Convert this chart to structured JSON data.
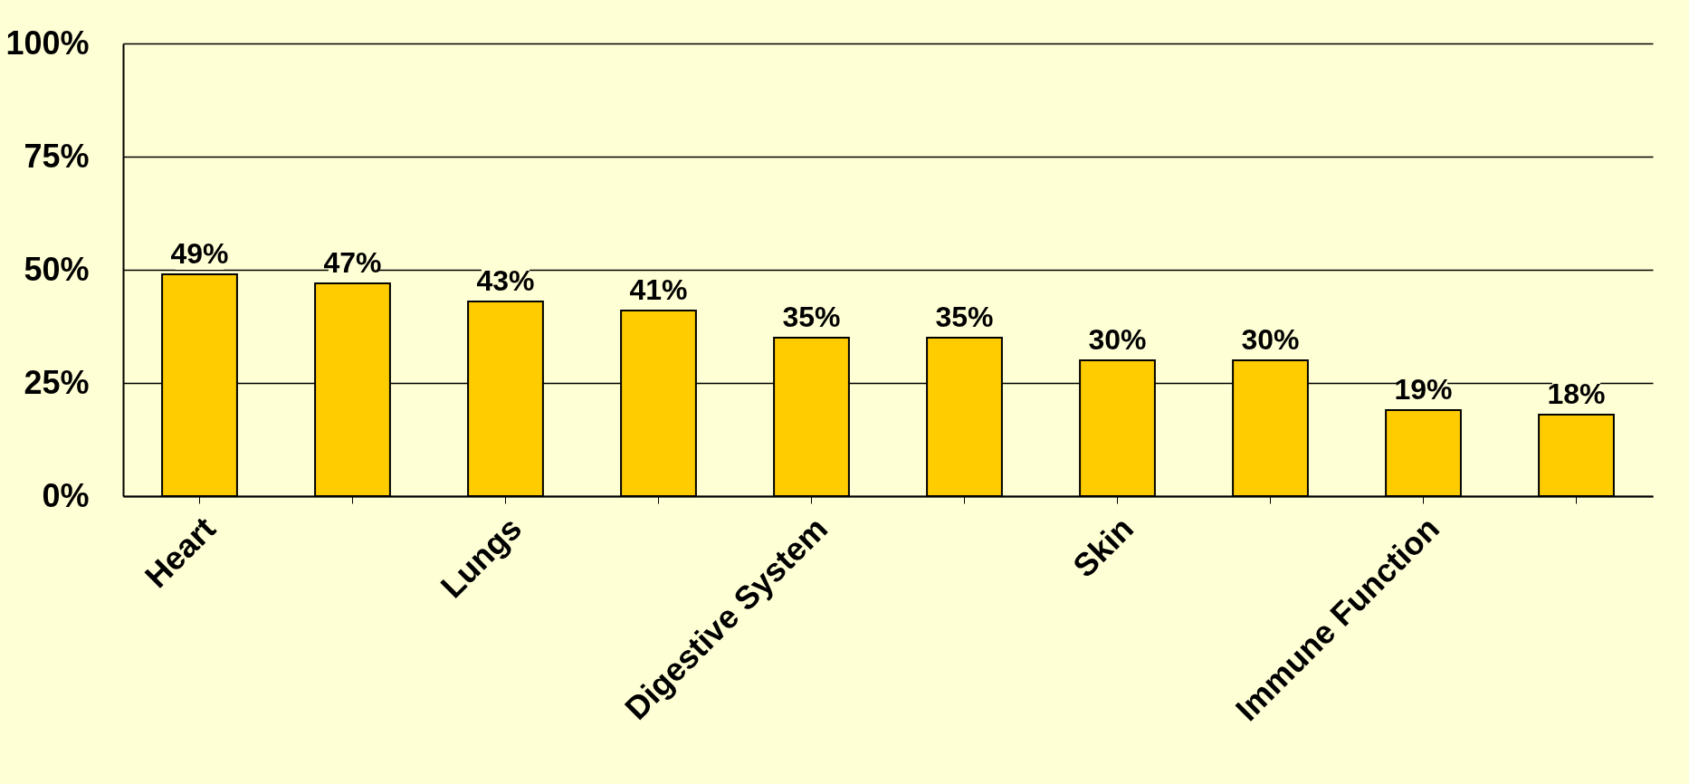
{
  "chart_data": {
    "type": "bar",
    "categories": [
      "Heart",
      null,
      "Lungs",
      null,
      "Digestive System",
      null,
      "Skin",
      null,
      "Immune Function",
      null
    ],
    "values": [
      49,
      47,
      43,
      41,
      35,
      35,
      30,
      30,
      19,
      18
    ],
    "value_labels": [
      "49%",
      "47%",
      "43%",
      "41%",
      "35%",
      "35%",
      "30%",
      "30%",
      "19%",
      "18%"
    ],
    "color": "#ffcc00",
    "ylim": [
      0,
      100
    ],
    "yticks": [
      {
        "value": 0,
        "label": "0%"
      },
      {
        "value": 25,
        "label": "25%"
      },
      {
        "value": 50,
        "label": "50%"
      },
      {
        "value": 75,
        "label": "75%"
      },
      {
        "value": 100,
        "label": "100%"
      }
    ],
    "grid": "y"
  }
}
